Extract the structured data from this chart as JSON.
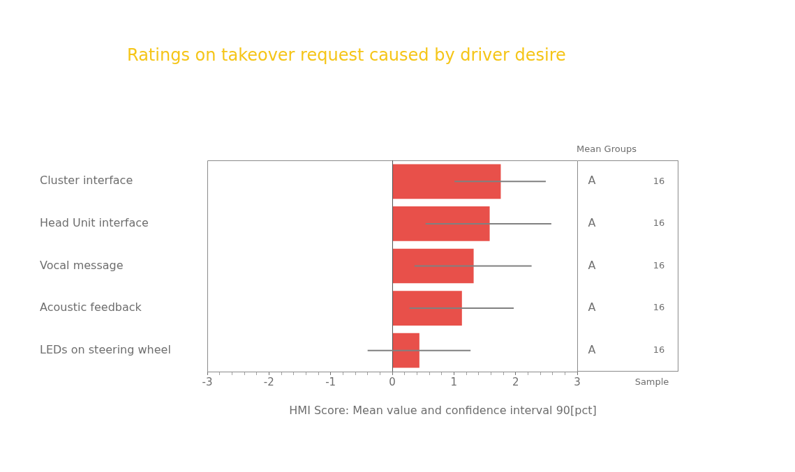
{
  "chart_data": {
    "type": "bar",
    "orientation": "horizontal",
    "title": "Ratings on takeover request caused by driver desire",
    "xlabel": "HMI Score: Mean value and confidence interval 90[pct]",
    "categories": [
      "Cluster interface",
      "Head Unit interface",
      "Vocal message",
      "Acoustic feedback",
      "LEDs on steering wheel"
    ],
    "values": [
      1.76,
      1.58,
      1.32,
      1.13,
      0.44
    ],
    "color": "#e8504a",
    "errors": [
      [
        1.01,
        2.49
      ],
      [
        0.54,
        2.58
      ],
      [
        0.36,
        2.26
      ],
      [
        0.28,
        1.97
      ],
      [
        -0.4,
        1.27
      ]
    ],
    "xlim": [
      -3,
      3
    ],
    "xticks": [
      -3,
      {
        "value": -2.8,
        "label": null
      },
      {
        "value": -2.6,
        "label": null
      },
      {
        "value": -2.4,
        "label": null
      },
      {
        "value": -2.2,
        "label": null
      },
      -2,
      {
        "value": -1.8,
        "label": null
      },
      {
        "value": -1.6,
        "label": null
      },
      {
        "value": -1.4,
        "label": null
      },
      {
        "value": -1.2,
        "label": null
      },
      -1,
      {
        "value": -0.8,
        "label": null
      },
      {
        "value": -0.6,
        "label": null
      },
      {
        "value": -0.4,
        "label": null
      },
      {
        "value": -0.2,
        "label": null
      },
      0,
      {
        "value": 0.2,
        "label": null
      },
      {
        "value": 0.4,
        "label": null
      },
      {
        "value": 0.6,
        "label": null
      },
      {
        "value": 0.8,
        "label": null
      },
      1,
      {
        "value": 1.2,
        "label": null
      },
      {
        "value": 1.4,
        "label": null
      },
      {
        "value": 1.6,
        "label": null
      },
      {
        "value": 1.8,
        "label": null
      },
      2,
      {
        "value": 2.2,
        "label": null
      },
      {
        "value": 2.4,
        "label": null
      },
      {
        "value": 2.6,
        "label": null
      },
      {
        "value": 2.8,
        "label": null
      },
      3
    ],
    "legend": false,
    "annotations": [
      "Mean Groups",
      "Sample",
      "A",
      "16",
      "A",
      "16",
      "A",
      "16",
      "A",
      "16",
      "A",
      "16"
    ]
  }
}
